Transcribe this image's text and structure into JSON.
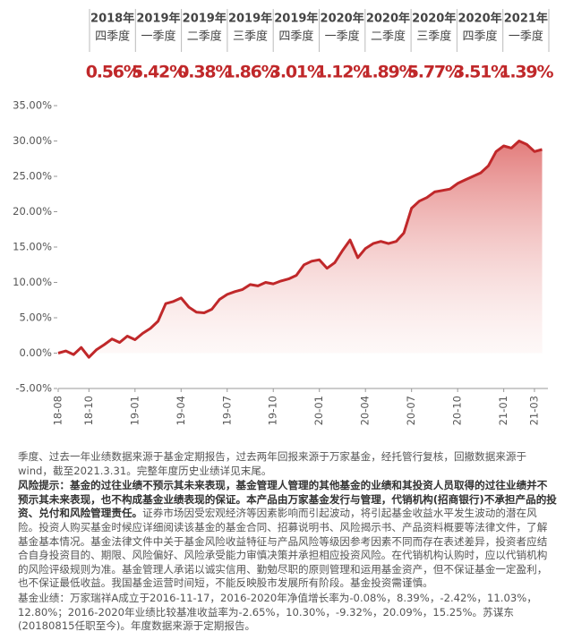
{
  "quarters": [
    {
      "year": "2018年",
      "quarter": "四季度",
      "label": "0.56%"
    },
    {
      "year": "2019年",
      "quarter": "一季度",
      "label": "5.42%"
    },
    {
      "year": "2019年",
      "quarter": "二季度",
      "label": "0.38%"
    },
    {
      "year": "2019年",
      "quarter": "三季度",
      "label": "1.86%"
    },
    {
      "year": "2019年",
      "quarter": "四季度",
      "label": "3.01%"
    },
    {
      "year": "2020年",
      "quarter": "一季度",
      "label": "1.12%"
    },
    {
      "year": "2020年",
      "quarter": "二季度",
      "label": "1.89%"
    },
    {
      "year": "2020年",
      "quarter": "三季度",
      "label": "5.77%"
    },
    {
      "year": "2020年",
      "quarter": "四季度",
      "label": "3.51%"
    },
    {
      "year": "2021年",
      "quarter": "一季度",
      "label": "1.39%"
    }
  ],
  "chart_data": {
    "type": "area",
    "color": "#c0282a",
    "categories": [
      "18-08",
      null,
      null,
      null,
      "18-10",
      null,
      null,
      null,
      null,
      null,
      "19-01",
      null,
      null,
      null,
      null,
      null,
      "19-04",
      null,
      null,
      null,
      null,
      null,
      "19-07",
      null,
      null,
      null,
      null,
      null,
      "19-10",
      null,
      null,
      null,
      null,
      null,
      "20-01",
      null,
      null,
      null,
      null,
      null,
      "20-04",
      null,
      null,
      null,
      null,
      null,
      "20-07",
      null,
      null,
      null,
      null,
      null,
      "20-10",
      null,
      null,
      null,
      null,
      null,
      "21-01",
      null,
      null,
      null,
      "21-03",
      null
    ],
    "values": [
      0.0,
      0.3,
      -0.2,
      0.8,
      -0.6,
      0.5,
      1.2,
      2.0,
      1.5,
      2.4,
      1.9,
      2.8,
      3.5,
      4.5,
      7.0,
      7.3,
      7.8,
      6.5,
      5.8,
      5.7,
      6.2,
      7.6,
      8.3,
      8.7,
      9.0,
      9.7,
      9.5,
      10.0,
      9.8,
      10.2,
      10.5,
      11.0,
      12.5,
      13.0,
      13.2,
      12.0,
      12.8,
      14.5,
      16.0,
      13.5,
      14.8,
      15.5,
      15.8,
      15.5,
      15.8,
      17.0,
      20.5,
      21.5,
      22.0,
      22.8,
      23.0,
      23.2,
      24.0,
      24.5,
      25.0,
      25.5,
      26.5,
      28.5,
      29.3,
      29.0,
      30.0,
      29.5,
      28.5,
      28.8
    ],
    "ylim": [
      -5,
      35
    ],
    "yticks": [
      {
        "value": 35,
        "label": "35.00%"
      },
      {
        "value": 30,
        "label": "30.00%"
      },
      {
        "value": 25,
        "label": "25.00%"
      },
      {
        "value": 20,
        "label": "20.00%"
      },
      {
        "value": 15,
        "label": "15.00%"
      },
      {
        "value": 10,
        "label": "10.00%"
      },
      {
        "value": 5,
        "label": "5.00%"
      },
      {
        "value": 0,
        "label": "0.00%"
      },
      {
        "value": -5,
        "label": "-5.00%"
      }
    ]
  },
  "notes": {
    "p1": "季度、过去一年业绩数据来源于基金定期报告，过去两年回报来源于万家基金，经托管行复核，回撤数据来源于wind，截至2021.3.31。完整年度历史业绩详见末尾。",
    "p2_bold": "风险提示：基金的过往业绩不预示其未来表现，基金管理人管理的其他基金的业绩和其投资人员取得的过往业绩并不预示其未来表现，也不构成基金业绩表现的保证。本产品由万家基金发行与管理，代销机构(招商银行)不承担产品的投资、兑付和风险管理责任。",
    "p2": "证券市场因受宏观经济等因素影响而引起波动，将引起基金收益水平发生波动的潜在风险。投资人购买基金时候应详细阅读该基金的基金合同、招募说明书、风险揭示书、产品资料概要等法律文件，了解基金基本情况。基金法律文件中关于基金风险收益特征与产品风险等级因参考因素不同而存在表述差异，投资者应结合自身投资目的、期限、风险偏好、风险承受能力审慎决策并承担相应投资风险。在代销机构认购时，应以代销机构的风险评级规则为准。基金管理人承诺以诚实信用、勤勉尽职的原则管理和运用基金资产，但不保证基金一定盈利，也不保证最低收益。我国基金运营时间短，不能反映股市发展所有阶段。基金投资需谨慎。",
    "p3": "基金业绩：万家瑞祥A成立于2016-11-17，2016-2020年净值增长率为-0.08%，8.39%，-2.42%，11.03%，12.80%；2016-2020年业绩比较基准收益率为-2.65%，10.30%，-9.32%，20.09%，15.25%。苏谋东(20180815任职至今)。年度数据来源于定期报告。"
  }
}
